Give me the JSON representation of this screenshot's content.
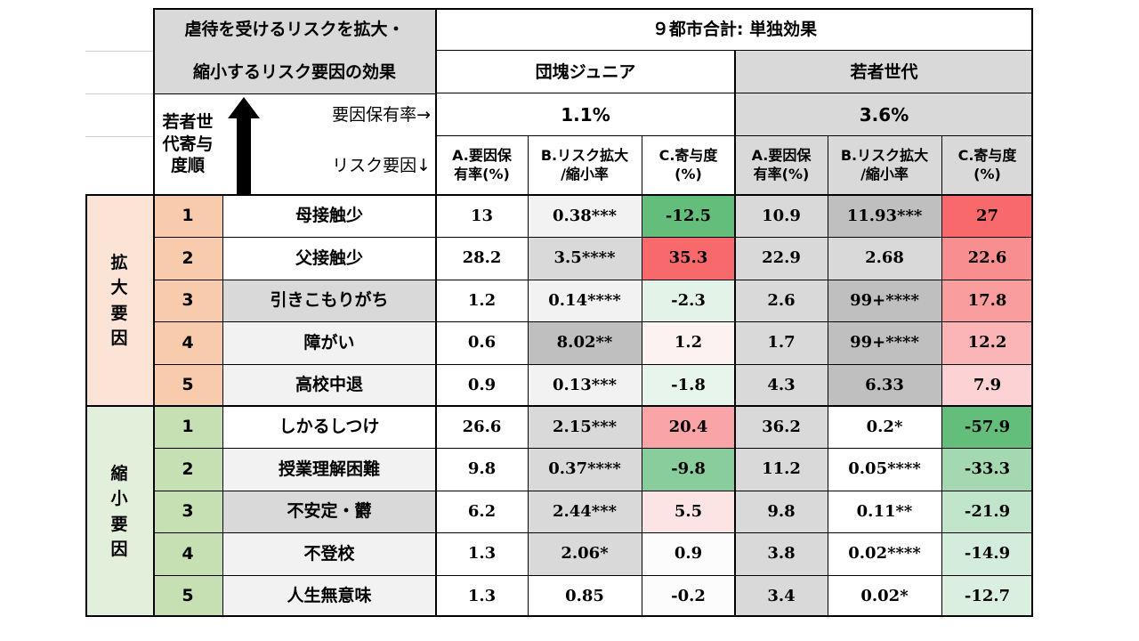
{
  "header": {
    "title_line1": "虐待を受けるリスクを拡大・",
    "title_line2": "縮小するリスク要因の効果",
    "nine_city": "９都市合計: 単独効果",
    "group_junior": "団塊ジュニア",
    "group_young": "若者世代",
    "rank_label": "若者世\n代寄与\n度順",
    "holding_rate_label": "要因保有率→",
    "risk_factor_label": "リスク要因↓",
    "junior_holding_rate": "1.1%",
    "young_holding_rate": "3.6%",
    "col_a": "A.要因保\n有率(%)",
    "col_b": "B.リスク拡大\n/縮小率",
    "col_c": "C.寄与度\n(%)"
  },
  "groups": {
    "expand_label": "拡\n大\n要\n因",
    "shrink_label": "縮\n小\n要\n因"
  },
  "rows": [
    {
      "rank": "1",
      "factor": "母接触少",
      "ja": "13",
      "jb": "0.38***",
      "jc": "-12.5",
      "ya": "10.9",
      "yb": "11.93***",
      "yc": "27"
    },
    {
      "rank": "2",
      "factor": "父接触少",
      "ja": "28.2",
      "jb": "3.5****",
      "jc": "35.3",
      "ya": "22.9",
      "yb": "2.68",
      "yc": "22.6"
    },
    {
      "rank": "3",
      "factor": "引きこもりがち",
      "ja": "1.2",
      "jb": "0.14****",
      "jc": "-2.3",
      "ya": "2.6",
      "yb": "99+****",
      "yc": "17.8"
    },
    {
      "rank": "4",
      "factor": "障がい",
      "ja": "0.6",
      "jb": "8.02**",
      "jc": "1.2",
      "ya": "1.7",
      "yb": "99+****",
      "yc": "12.2"
    },
    {
      "rank": "5",
      "factor": "高校中退",
      "ja": "0.9",
      "jb": "0.13***",
      "jc": "-1.8",
      "ya": "4.3",
      "yb": "6.33",
      "yc": "7.9"
    },
    {
      "rank": "1",
      "factor": "しかるしつけ",
      "ja": "26.6",
      "jb": "2.15***",
      "jc": "20.4",
      "ya": "36.2",
      "yb": "0.2*",
      "yc": "-57.9"
    },
    {
      "rank": "2",
      "factor": "授業理解困難",
      "ja": "9.8",
      "jb": "0.37****",
      "jc": "-9.8",
      "ya": "11.2",
      "yb": "0.05****",
      "yc": "-33.3"
    },
    {
      "rank": "3",
      "factor": "不安定・欝",
      "ja": "6.2",
      "jb": "2.44***",
      "jc": "5.5",
      "ya": "9.8",
      "yb": "0.11**",
      "yc": "-21.9"
    },
    {
      "rank": "4",
      "factor": "不登校",
      "ja": "1.3",
      "jb": "2.06*",
      "jc": "0.9",
      "ya": "3.8",
      "yb": "0.02****",
      "yc": "-14.9"
    },
    {
      "rank": "5",
      "factor": "人生無意味",
      "ja": "1.3",
      "jb": "0.85",
      "jc": "-0.2",
      "ya": "3.4",
      "yb": "0.02*",
      "yc": "-12.7"
    }
  ],
  "colors": {
    "expand_group_bg": "#fbe3d6",
    "expand_rank_bg": "#f8cbad",
    "shrink_group_bg": "#e2efda",
    "shrink_rank_bg": "#c6e0b4",
    "header_gray": "#d9d9d9",
    "dark_gray": "#bfbfbf",
    "light_gray": "#f2f2f2"
  }
}
